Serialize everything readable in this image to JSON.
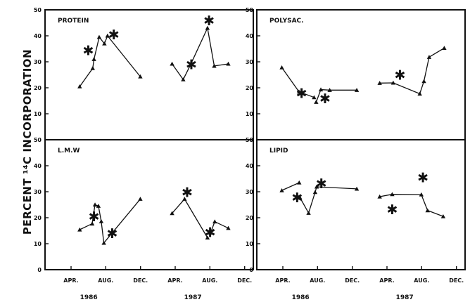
{
  "chart_data": {
    "type": "line",
    "ylabel": "PERCENT ¹⁴C INCORPORATION",
    "ylim": [
      0,
      50
    ],
    "yticks": [
      0,
      10,
      20,
      30,
      40,
      50
    ],
    "xlim": [
      1986.0,
      1988.0
    ],
    "x_tick_labels": [
      {
        "label": "APR.",
        "x": 1986.25
      },
      {
        "label": "AUG.",
        "x": 1986.583
      },
      {
        "label": "DEC.",
        "x": 1986.917
      },
      {
        "label": "APR.",
        "x": 1987.25
      },
      {
        "label": "AUG.",
        "x": 1987.583
      },
      {
        "label": "DEC.",
        "x": 1987.917
      }
    ],
    "year_labels": [
      {
        "label": "1986",
        "x": 1986.42
      },
      {
        "label": "1987",
        "x": 1987.42
      }
    ],
    "panels": [
      {
        "id": "protein",
        "label": "PROTEIN",
        "row": 0,
        "col": 0,
        "segments": [
          {
            "x": [
              1986.333,
              1986.458,
              1986.47,
              1986.52,
              1986.57,
              1986.6,
              1986.915
            ],
            "y": [
              20.5,
              27.5,
              31,
              39.5,
              37,
              40,
              24.3
            ]
          },
          {
            "x": [
              1987.22,
              1987.327,
              1987.395,
              1987.56,
              1987.625,
              1987.76
            ],
            "y": [
              29.2,
              23.2,
              28.7,
              43,
              28.4,
              29.2
            ]
          }
        ],
        "stars": [
          {
            "x": 1986.415,
            "y": 34.5
          },
          {
            "x": 1986.66,
            "y": 40.5
          },
          {
            "x": 1987.405,
            "y": 29
          },
          {
            "x": 1987.575,
            "y": 46
          }
        ]
      },
      {
        "id": "polysac",
        "label": "POLYSAC.",
        "row": 0,
        "col": 1,
        "segments": [
          {
            "x": [
              1986.24,
              1986.405,
              1986.55
            ],
            "y": [
              27.8,
              18.5,
              16.3
            ]
          },
          {
            "x": [
              1986.57,
              1986.615,
              1986.7,
              1986.96
            ],
            "y": [
              14.5,
              19.3,
              19.1,
              19.1
            ]
          },
          {
            "x": [
              1987.18,
              1987.31,
              1987.565,
              1987.605,
              1987.655,
              1987.8
            ],
            "y": [
              21.8,
              21.9,
              17.7,
              22.5,
              31.8,
              35.3
            ]
          }
        ],
        "stars": [
          {
            "x": 1986.43,
            "y": 18
          },
          {
            "x": 1986.655,
            "y": 16
          },
          {
            "x": 1987.375,
            "y": 25
          }
        ]
      },
      {
        "id": "lmw",
        "label": "L.M.W",
        "row": 1,
        "col": 0,
        "segments": [
          {
            "x": [
              1986.333,
              1986.453,
              1986.48,
              1986.513,
              1986.54,
              1986.565,
              1986.915
            ],
            "y": [
              15.4,
              17.7,
              25,
              24.5,
              18.6,
              10.3,
              27.2
            ]
          },
          {
            "x": [
              1987.22,
              1987.34,
              1987.56
            ],
            "y": [
              21.7,
              27.2,
              12.3
            ]
          },
          {
            "x": [
              1987.59,
              1987.63,
              1987.76
            ],
            "y": [
              14.2,
              18.5,
              16
            ]
          }
        ],
        "stars": [
          {
            "x": 1986.47,
            "y": 20.5
          },
          {
            "x": 1986.645,
            "y": 14
          },
          {
            "x": 1987.365,
            "y": 29.8
          },
          {
            "x": 1987.585,
            "y": 14.5
          }
        ]
      },
      {
        "id": "lipid",
        "label": "LIPID",
        "row": 1,
        "col": 1,
        "segments": [
          {
            "x": [
              1986.24,
              1986.407
            ],
            "y": [
              30.5,
              33.5
            ]
          },
          {
            "x": [
              1986.415,
              1986.497,
              1986.56,
              1986.575,
              1986.96
            ],
            "y": [
              27.7,
              21.8,
              29.8,
              31.9,
              31.1
            ]
          },
          {
            "x": [
              1987.18,
              1987.3,
              1987.58,
              1987.64,
              1987.79
            ],
            "y": [
              28.1,
              29,
              28.9,
              22.8,
              20.5
            ]
          }
        ],
        "stars": [
          {
            "x": 1986.387,
            "y": 27.8
          },
          {
            "x": 1986.62,
            "y": 33.3
          },
          {
            "x": 1987.3,
            "y": 23.3
          },
          {
            "x": 1987.595,
            "y": 35.5
          }
        ]
      }
    ]
  }
}
